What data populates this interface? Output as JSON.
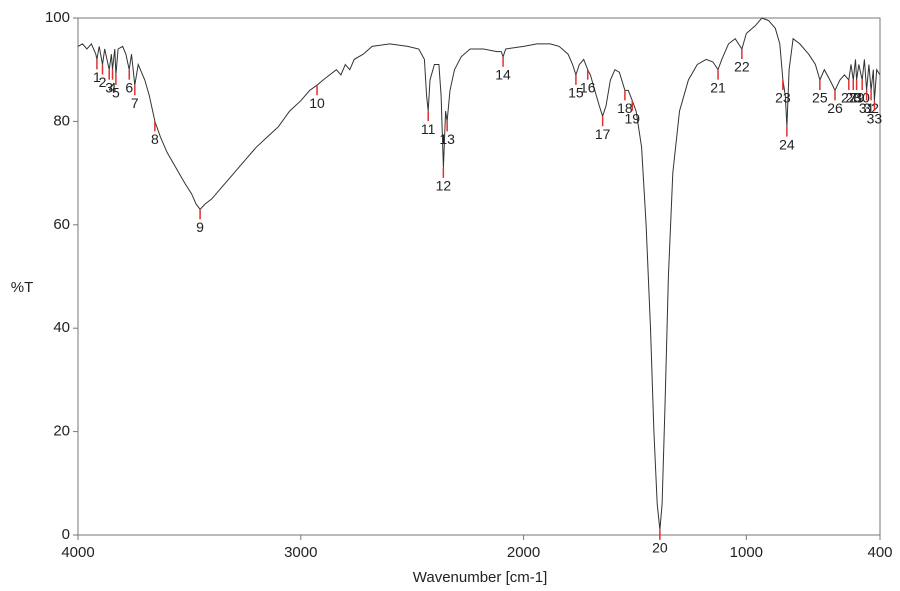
{
  "chart_data": {
    "type": "line",
    "xlabel": "Wavenumber [cm-1]",
    "ylabel": "%T",
    "xlim": [
      4000,
      400
    ],
    "ylim": [
      0,
      100
    ],
    "xticks": [
      4000,
      3000,
      2000,
      1000,
      400
    ],
    "yticks": [
      0,
      20,
      40,
      60,
      80,
      100
    ],
    "series": [
      {
        "color": "#333333",
        "x": [
          4000,
          3980,
          3960,
          3940,
          3920,
          3915,
          3905,
          3890,
          3880,
          3860,
          3850,
          3845,
          3835,
          3830,
          3820,
          3800,
          3785,
          3770,
          3760,
          3745,
          3730,
          3700,
          3680,
          3655,
          3630,
          3600,
          3560,
          3520,
          3490,
          3470,
          3452,
          3430,
          3400,
          3360,
          3320,
          3280,
          3240,
          3200,
          3150,
          3100,
          3050,
          3000,
          2960,
          2927,
          2900,
          2870,
          2840,
          2820,
          2800,
          2780,
          2760,
          2720,
          2680,
          2600,
          2520,
          2470,
          2445,
          2435,
          2428,
          2420,
          2400,
          2380,
          2370,
          2360,
          2350,
          2343,
          2330,
          2310,
          2280,
          2240,
          2180,
          2120,
          2100,
          2092,
          2080,
          2000,
          1940,
          1880,
          1840,
          1800,
          1780,
          1765,
          1750,
          1730,
          1712,
          1700,
          1680,
          1660,
          1645,
          1630,
          1610,
          1590,
          1570,
          1545,
          1530,
          1512,
          1495,
          1470,
          1450,
          1430,
          1415,
          1400,
          1388,
          1378,
          1365,
          1350,
          1330,
          1300,
          1260,
          1220,
          1180,
          1150,
          1127,
          1110,
          1080,
          1050,
          1020,
          1000,
          960,
          930,
          900,
          870,
          850,
          836,
          825,
          818,
          808,
          790,
          760,
          720,
          690,
          670,
          650,
          625,
          602,
          580,
          560,
          540,
          530,
          520,
          510,
          505,
          495,
          480,
          470,
          460,
          450,
          440,
          430,
          425,
          415,
          400
        ],
        "values": [
          94.5,
          95,
          94,
          95,
          93,
          92,
          94.5,
          91,
          94,
          90,
          93,
          90,
          94,
          89,
          94,
          94.5,
          93,
          90,
          93,
          87,
          91,
          88,
          85,
          80,
          77,
          74,
          71,
          68,
          66,
          64,
          63,
          64,
          65,
          67,
          69,
          71,
          73,
          75,
          77,
          79,
          82,
          84,
          86,
          87,
          88,
          89,
          90,
          89,
          91,
          90,
          92,
          93,
          94.5,
          95,
          94.5,
          94,
          92,
          85,
          82,
          88,
          91,
          91,
          85,
          71,
          82,
          80,
          86,
          90,
          92.5,
          94,
          94,
          93.5,
          93.5,
          92.5,
          94,
          94.5,
          95,
          95,
          94.5,
          93,
          91,
          89,
          91,
          92,
          90,
          89,
          86,
          83,
          81,
          83,
          88,
          90,
          89.5,
          86,
          86,
          84,
          82,
          75,
          60,
          40,
          20,
          6,
          1,
          6,
          25,
          50,
          70,
          82,
          88,
          91,
          92,
          91.5,
          90,
          92,
          95,
          96,
          94,
          97,
          98.5,
          100,
          99.5,
          98,
          95,
          88,
          85,
          79,
          90,
          96,
          95,
          93,
          91,
          88,
          90,
          88,
          86,
          88,
          89,
          88,
          91,
          88,
          92,
          88,
          91,
          88,
          92,
          86,
          91,
          86,
          90,
          84,
          90,
          89
        ]
      }
    ],
    "peaks": {
      "color": "#e03030",
      "labels": [
        "1",
        "2",
        "3",
        "4",
        "5",
        "6",
        "7",
        "8",
        "9",
        "10",
        "11",
        "12",
        "13",
        "14",
        "15",
        "16",
        "17",
        "18",
        "19",
        "20",
        "21",
        "22",
        "23",
        "24",
        "25",
        "26",
        "27",
        "28",
        "29",
        "30",
        "31",
        "32",
        "33"
      ],
      "x": [
        3915,
        3890,
        3860,
        3845,
        3830,
        3770,
        3745,
        3655,
        3452,
        2927,
        2428,
        2360,
        2343,
        2092,
        1765,
        1712,
        1645,
        1545,
        1512,
        1388,
        1127,
        1020,
        836,
        818,
        670,
        602,
        540,
        520,
        505,
        480,
        460,
        440,
        425
      ],
      "values": [
        92,
        91,
        90,
        90,
        89,
        90,
        87,
        80,
        63,
        87,
        82,
        71,
        80,
        92.5,
        89,
        90,
        81,
        86,
        84,
        1,
        90,
        94,
        88,
        79,
        88,
        86,
        88,
        88,
        88,
        88,
        86,
        86,
        84
      ]
    }
  }
}
